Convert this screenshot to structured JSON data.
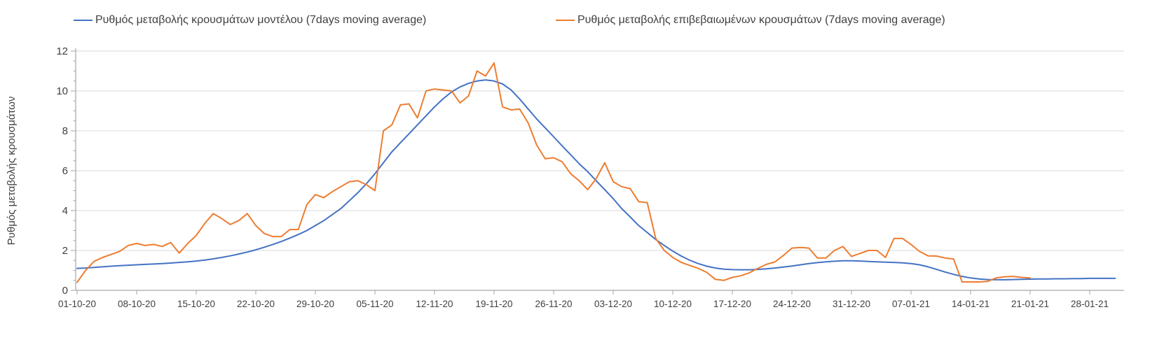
{
  "legend": [
    {
      "id": "model",
      "label": "Ρυθμός μεταβολής κρουσμάτων μοντέλου (7days moving average)",
      "color": "#4472C4"
    },
    {
      "id": "confirmed",
      "label": "Ρυθμός μεταβολής επιβεβαιωμένων κρουσμάτων (7days moving average)",
      "color": "#ED7D31"
    }
  ],
  "y_axis": {
    "label": "Ρυθμός μεταβολής κρουσμάτων",
    "ticks": [
      0,
      2,
      4,
      6,
      8,
      10,
      12
    ],
    "min": 0,
    "max": 12
  },
  "x_axis": {
    "tick_labels": [
      "01-10-20",
      "08-10-20",
      "15-10-20",
      "22-10-20",
      "29-10-20",
      "05-11-20",
      "12-11-20",
      "19-11-20",
      "26-11-20",
      "03-12-20",
      "10-12-20",
      "17-12-20",
      "24-12-20",
      "31-12-20",
      "07-01-21",
      "14-01-21",
      "21-01-21",
      "28-01-21"
    ],
    "tick_interval_days": 7
  },
  "colors": {
    "model_line": "#4472C4",
    "confirmed_line": "#ED7D31",
    "gridline": "#D9D9D9",
    "axis_line": "#A6A6A6",
    "tick_text": "#404040"
  },
  "chart_data": {
    "type": "line",
    "title": "",
    "xlabel": "",
    "ylabel": "Ρυθμός μεταβολής κρουσμάτων",
    "ylim": [
      0,
      12
    ],
    "grid": "horizontal",
    "legend_position": "top",
    "x_unit": "days since 01-10-20, one point per day",
    "x_tick_dates": [
      "01-10-20",
      "08-10-20",
      "15-10-20",
      "22-10-20",
      "29-10-20",
      "05-11-20",
      "12-11-20",
      "19-11-20",
      "26-11-20",
      "03-12-20",
      "10-12-20",
      "17-12-20",
      "24-12-20",
      "31-12-20",
      "07-01-21",
      "14-01-21",
      "21-01-21",
      "28-01-21"
    ],
    "series": [
      {
        "name": "Ρυθμός μεταβολής κρουσμάτων μοντέλου (7days moving average)",
        "color": "#4472C4",
        "start_day": 0,
        "values": [
          1.1,
          1.12,
          1.15,
          1.18,
          1.21,
          1.24,
          1.26,
          1.28,
          1.3,
          1.32,
          1.34,
          1.37,
          1.4,
          1.43,
          1.47,
          1.52,
          1.58,
          1.65,
          1.73,
          1.82,
          1.92,
          2.03,
          2.16,
          2.3,
          2.45,
          2.62,
          2.8,
          3.0,
          3.25,
          3.5,
          3.8,
          4.1,
          4.5,
          4.9,
          5.35,
          5.85,
          6.4,
          6.95,
          7.4,
          7.85,
          8.3,
          8.75,
          9.2,
          9.6,
          9.95,
          10.2,
          10.38,
          10.5,
          10.55,
          10.5,
          10.35,
          10.05,
          9.6,
          9.1,
          8.6,
          8.15,
          7.7,
          7.25,
          6.8,
          6.35,
          5.95,
          5.5,
          5.05,
          4.6,
          4.1,
          3.68,
          3.25,
          2.9,
          2.55,
          2.25,
          1.97,
          1.72,
          1.51,
          1.34,
          1.21,
          1.12,
          1.06,
          1.04,
          1.03,
          1.03,
          1.05,
          1.08,
          1.12,
          1.17,
          1.22,
          1.28,
          1.34,
          1.39,
          1.43,
          1.46,
          1.48,
          1.48,
          1.47,
          1.45,
          1.43,
          1.41,
          1.4,
          1.38,
          1.34,
          1.28,
          1.18,
          1.05,
          0.92,
          0.8,
          0.7,
          0.62,
          0.57,
          0.54,
          0.53,
          0.53,
          0.54,
          0.55,
          0.56,
          0.57,
          0.57,
          0.58,
          0.58,
          0.59,
          0.59,
          0.6,
          0.6,
          0.6,
          0.6
        ]
      },
      {
        "name": "Ρυθμός μεταβολής επιβεβαιωμένων κρουσμάτων (7days moving average)",
        "color": "#ED7D31",
        "start_day": 0,
        "values": [
          0.4,
          1.0,
          1.45,
          1.65,
          1.8,
          1.95,
          2.25,
          2.35,
          2.25,
          2.3,
          2.2,
          2.4,
          1.87,
          2.35,
          2.75,
          3.35,
          3.85,
          3.6,
          3.3,
          3.5,
          3.85,
          3.25,
          2.85,
          2.7,
          2.7,
          3.05,
          3.05,
          4.3,
          4.8,
          4.65,
          4.95,
          5.2,
          5.45,
          5.5,
          5.3,
          5.0,
          8.0,
          8.3,
          9.3,
          9.35,
          8.65,
          10.0,
          10.1,
          10.05,
          10.0,
          9.4,
          9.75,
          11.0,
          10.75,
          11.4,
          9.2,
          9.05,
          9.1,
          8.4,
          7.3,
          6.6,
          6.65,
          6.45,
          5.85,
          5.5,
          5.05,
          5.6,
          6.4,
          5.45,
          5.2,
          5.1,
          4.45,
          4.4,
          2.6,
          2.0,
          1.65,
          1.4,
          1.25,
          1.1,
          0.9,
          0.55,
          0.5,
          0.65,
          0.73,
          0.88,
          1.1,
          1.3,
          1.42,
          1.75,
          2.12,
          2.15,
          2.12,
          1.62,
          1.62,
          2.0,
          2.2,
          1.7,
          1.85,
          2.0,
          2.0,
          1.65,
          2.6,
          2.6,
          2.3,
          1.95,
          1.73,
          1.72,
          1.62,
          1.57,
          0.42,
          0.42,
          0.42,
          0.45,
          0.62,
          0.68,
          0.7,
          0.65,
          0.62
        ]
      }
    ]
  }
}
